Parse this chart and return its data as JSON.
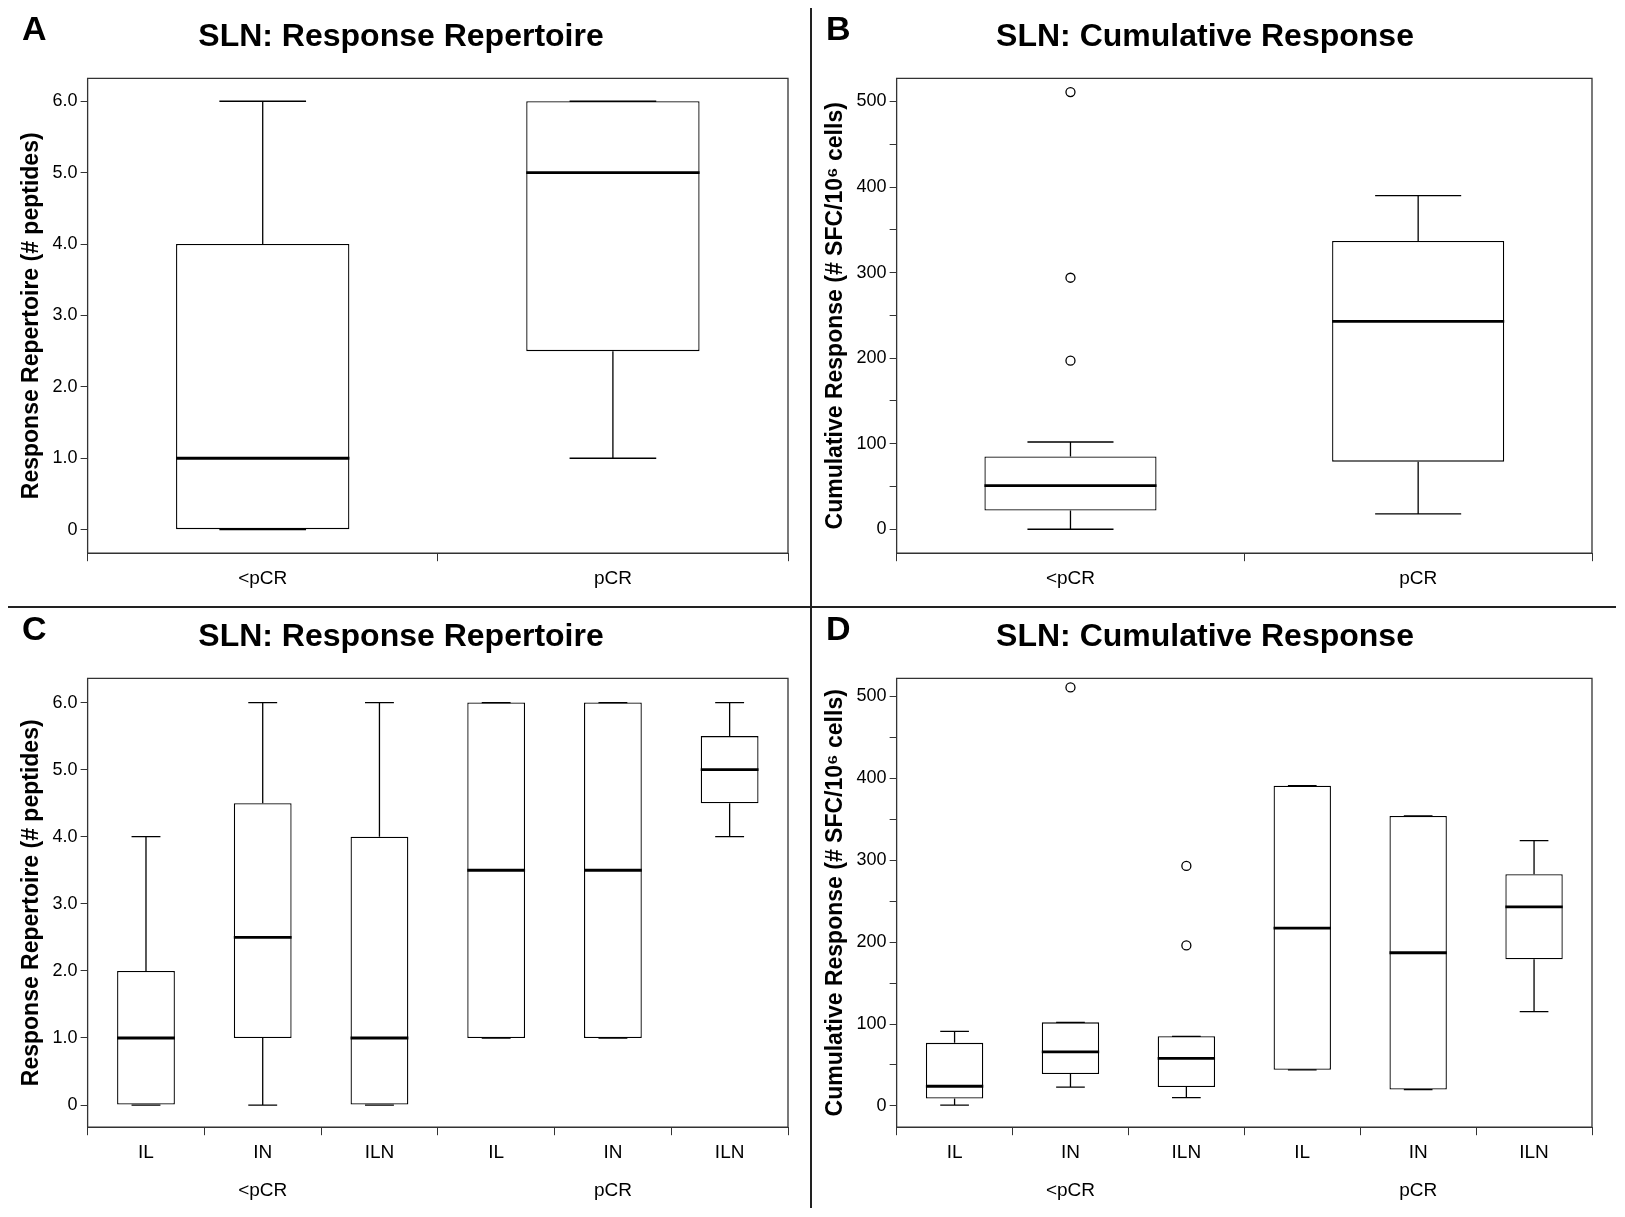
{
  "chart_data": [
    {
      "type": "box",
      "title": "SLN: Response Repertoire",
      "ylabel": "Response Repertoire (# peptides)",
      "annotations": [
        "A"
      ],
      "categories": [
        "<pCR",
        "pCR"
      ],
      "color": "#000000",
      "grid": false,
      "legend": false,
      "boxes": [
        {
          "low": 0,
          "q1": 0,
          "median": 1,
          "q3": 4,
          "high": 6
        },
        {
          "low": 1,
          "q1": 2.5,
          "median": 5,
          "q3": 6,
          "high": 6
        }
      ],
      "ylim": [
        -0.33,
        6.32
      ],
      "yticks": [
        0,
        {
          "value": 1,
          "label": "1.0"
        },
        {
          "value": 2,
          "label": "2.0"
        },
        {
          "value": 3,
          "label": "3.0"
        },
        {
          "value": 4,
          "label": "4.0"
        },
        {
          "value": 5,
          "label": "5.0"
        },
        {
          "value": 6,
          "label": "6.0"
        }
      ]
    },
    {
      "type": "box",
      "title": "SLN: Cumulative Response",
      "ylabel": "Cumulative Response (# SFC/10⁶ cells)",
      "annotations": [
        "B"
      ],
      "categories": [
        "<pCR",
        "pCR"
      ],
      "color": "#000000",
      "grid": false,
      "legend": false,
      "boxes": [
        {
          "low": 0,
          "q1": 22,
          "median": 51,
          "q3": 85,
          "high": 102,
          "outliers": [
            511,
            294,
            197
          ]
        },
        {
          "low": 18,
          "q1": 79,
          "median": 243,
          "q3": 337,
          "high": 390
        }
      ],
      "ylim": [
        -28,
        527
      ],
      "yticks": [
        0,
        {
          "value": 50,
          "label": null
        },
        100,
        {
          "value": 150,
          "label": null
        },
        200,
        {
          "value": 250,
          "label": null
        },
        300,
        {
          "value": 350,
          "label": null
        },
        400,
        {
          "value": 450,
          "label": null
        },
        500
      ]
    },
    {
      "type": "box",
      "title": "SLN: Response Repertoire",
      "ylabel": "Response Repertoire (# peptides)",
      "annotations": [
        "C",
        "<pCR",
        "pCR"
      ],
      "categories": [
        "IL",
        "IN",
        "ILN",
        "IL",
        "IN",
        "ILN"
      ],
      "color": "#000000",
      "grid": false,
      "legend": false,
      "boxes": [
        {
          "low": 0,
          "q1": 0,
          "median": 1,
          "q3": 2,
          "high": 4
        },
        {
          "low": 0,
          "q1": 1,
          "median": 2.5,
          "q3": 4.5,
          "high": 6
        },
        {
          "low": 0,
          "q1": 0,
          "median": 1,
          "q3": 4,
          "high": 6
        },
        {
          "low": 1,
          "q1": 1,
          "median": 3.5,
          "q3": 6,
          "high": 6
        },
        {
          "low": 1,
          "q1": 1,
          "median": 3.5,
          "q3": 6,
          "high": 6
        },
        {
          "low": 4,
          "q1": 4.5,
          "median": 5,
          "q3": 5.5,
          "high": 6
        }
      ],
      "ylim": [
        -0.33,
        6.36
      ],
      "yticks": [
        0,
        {
          "value": 1,
          "label": "1.0"
        },
        {
          "value": 2,
          "label": "2.0"
        },
        {
          "value": 3,
          "label": "3.0"
        },
        {
          "value": 4,
          "label": "4.0"
        },
        {
          "value": 5,
          "label": "5.0"
        },
        {
          "value": 6,
          "label": "6.0"
        }
      ]
    },
    {
      "type": "box",
      "title": "SLN: Cumulative Response",
      "ylabel": "Cumulative Response (# SFC/10⁶ cells)",
      "annotations": [
        "D",
        "<pCR",
        "pCR"
      ],
      "categories": [
        "IL",
        "IN",
        "ILN",
        "IL",
        "IN",
        "ILN"
      ],
      "color": "#000000",
      "grid": false,
      "legend": false,
      "boxes": [
        {
          "low": 1,
          "q1": 9,
          "median": 24,
          "q3": 77,
          "high": 91
        },
        {
          "low": 23,
          "q1": 39,
          "median": 66,
          "q3": 102,
          "high": 102,
          "outliers": [
            511
          ]
        },
        {
          "low": 10,
          "q1": 23,
          "median": 58,
          "q3": 85,
          "high": 85,
          "outliers": [
            293,
            196
          ]
        },
        {
          "low": 44,
          "q1": 44,
          "median": 217,
          "q3": 391,
          "high": 391
        },
        {
          "low": 20,
          "q1": 20,
          "median": 187,
          "q3": 354,
          "high": 354
        },
        {
          "low": 115,
          "q1": 179,
          "median": 243,
          "q3": 283,
          "high": 324
        }
      ],
      "ylim": [
        -26,
        522
      ],
      "yticks": [
        0,
        {
          "value": 50,
          "label": null
        },
        100,
        {
          "value": 150,
          "label": null
        },
        200,
        {
          "value": 250,
          "label": null
        },
        300,
        {
          "value": 350,
          "label": null
        },
        400,
        {
          "value": 450,
          "label": null
        },
        500
      ]
    }
  ]
}
